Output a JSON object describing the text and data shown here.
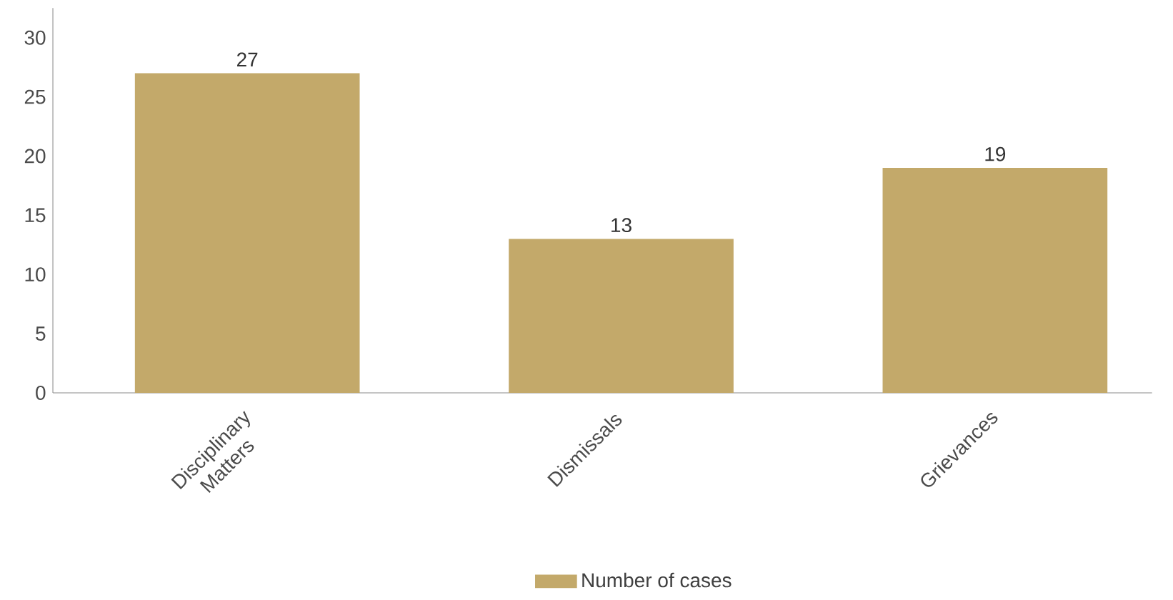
{
  "chart_data": {
    "type": "bar",
    "categories": [
      "Disciplinary Matters",
      "Dismissals",
      "Grievances"
    ],
    "series": [
      {
        "name": "Number of cases",
        "color": "#c3a96a",
        "values": [
          27,
          13,
          19
        ]
      }
    ],
    "ylim": [
      0,
      32.5
    ],
    "yticks": [
      0,
      5,
      10,
      15,
      20,
      25,
      30
    ],
    "data_labels": true,
    "legend": "bottom",
    "grid": false
  }
}
